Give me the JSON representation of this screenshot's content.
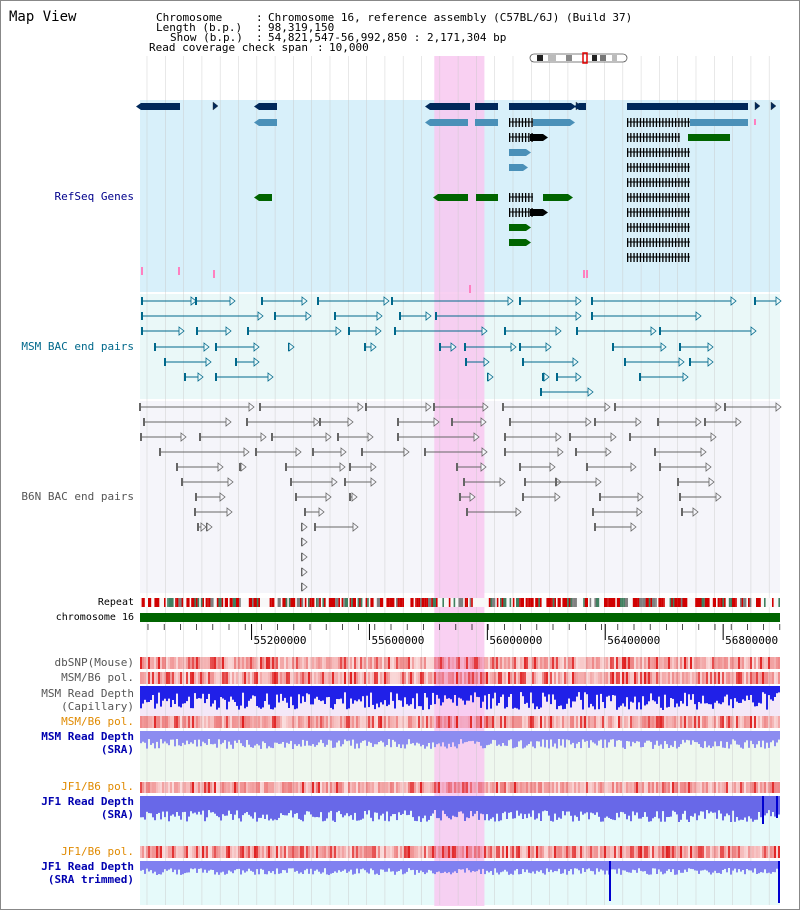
{
  "header": {
    "title": "Map View",
    "chromosome_label": "Chromosome",
    "chromosome_value": "Chromosome 16, reference assembly (C57BL/6J) (Build 37)",
    "length_label": "Length (b.p.)",
    "length_value": "98,319,150",
    "show_label": "Show (b.p.)",
    "show_value": "54,821,547-56,992,850 : 2,171,304 bp",
    "coverage_label": "Read coverage check span",
    "coverage_value": "10,000"
  },
  "axis": {
    "start_bp": 54821547,
    "end_bp": 56992850,
    "ticks": [
      55200000,
      55600000,
      56000000,
      56400000,
      56800000
    ],
    "tick_labels": [
      "55200000",
      "55600000",
      "56000000",
      "56400000",
      "56800000"
    ]
  },
  "highlight_region_bp": [
    55820000,
    55990000
  ],
  "tracks": {
    "refseq": {
      "label": "RefSeq Genes",
      "color": "#00008b"
    },
    "msm_bac": {
      "label": "MSM BAC end pairs",
      "color": "#00688b"
    },
    "b6n_bac": {
      "label": "B6N BAC end pairs",
      "color": "#555555"
    },
    "repeat": {
      "label": "Repeat"
    },
    "chromosome": {
      "label": "chromosome 16"
    },
    "dbsnp": {
      "label": "dbSNP(Mouse)"
    },
    "msm_b6_pol_1": {
      "label": "MSM/B6 pol."
    },
    "msm_depth_cap": {
      "label_1": "MSM Read Depth",
      "label_2": "(Capillary)"
    },
    "msm_b6_pol_2": {
      "label": "MSM/B6 pol."
    },
    "msm_depth_sra": {
      "label_1": "MSM Read Depth",
      "label_2": "(SRA)"
    },
    "jf1_b6_pol_1": {
      "label": "JF1/B6 pol."
    },
    "jf1_depth_sra": {
      "label_1": "JF1 Read Depth",
      "label_2": "(SRA)"
    },
    "jf1_b6_pol_2": {
      "label": "JF1/B6 pol."
    },
    "jf1_depth_trim": {
      "label_1": "JF1 Read Depth",
      "label_2": "(SRA trimmed)"
    }
  },
  "colors": {
    "refseq_bg": "#d8f0fa",
    "bac_bg": "#eaf8f8",
    "b6n_bg": "#f5f5fa",
    "highlight": "#f8c8f0",
    "gene_dark": "#00285a",
    "gene_mid": "#4a90b8",
    "gene_green": "#006400",
    "chrom_green": "#006400",
    "label_navy": "#00008b",
    "label_teal": "#00688b",
    "label_gray": "#555555",
    "label_orange": "#e08a00",
    "label_blue": "#0000b0"
  }
}
